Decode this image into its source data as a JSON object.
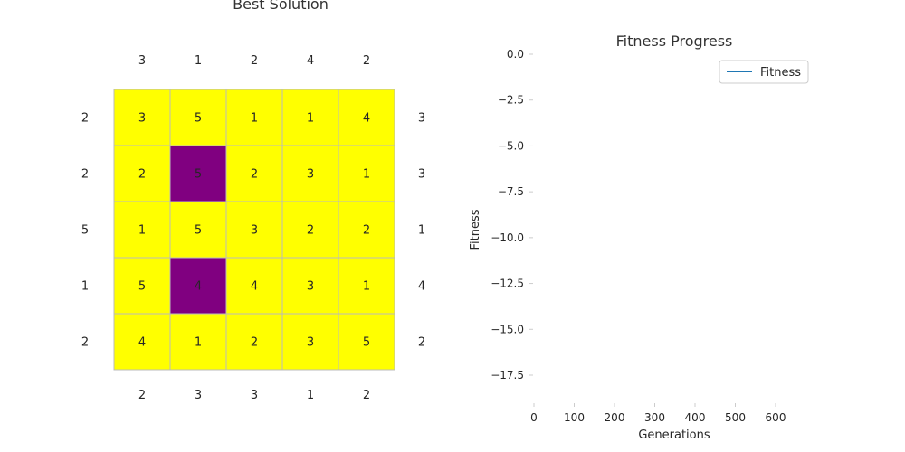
{
  "chart_data": [
    {
      "type": "heatmap",
      "title": "Best Solution",
      "colors": {
        "unshaded": "#ffff00",
        "shaded": "#800080",
        "gridline": "#bbbbbb"
      },
      "grid": [
        [
          3,
          5,
          1,
          1,
          4
        ],
        [
          2,
          5,
          2,
          3,
          1
        ],
        [
          1,
          5,
          3,
          2,
          2
        ],
        [
          5,
          4,
          4,
          3,
          1
        ],
        [
          4,
          1,
          2,
          3,
          5
        ]
      ],
      "shaded": [
        [
          false,
          false,
          false,
          false,
          false
        ],
        [
          false,
          true,
          false,
          false,
          false
        ],
        [
          false,
          false,
          false,
          false,
          false
        ],
        [
          false,
          true,
          false,
          false,
          false
        ],
        [
          false,
          false,
          false,
          false,
          false
        ]
      ],
      "top_clues": [
        3,
        1,
        2,
        4,
        2
      ],
      "bottom_clues": [
        2,
        3,
        3,
        1,
        2
      ],
      "left_clues": [
        2,
        2,
        5,
        1,
        2
      ],
      "right_clues": [
        3,
        3,
        1,
        4,
        2
      ]
    },
    {
      "type": "line",
      "title": "Fitness Progress",
      "xlabel": "Generations",
      "ylabel": "Fitness",
      "xlim": [
        0,
        700
      ],
      "ylim": [
        -18.5,
        0.5
      ],
      "xticks": [
        0,
        100,
        200,
        300,
        400,
        500,
        600
      ],
      "xtick_labels": [
        "0",
        "100",
        "200",
        "300",
        "400",
        "500",
        "600"
      ],
      "yticks": [
        0.0,
        -2.5,
        -5.0,
        -7.5,
        -10.0,
        -12.5,
        -15.0,
        -17.5
      ],
      "ytick_labels": [
        "0.0",
        "−2.5",
        "−5.0",
        "−7.5",
        "−10.0",
        "−12.5",
        "−15.0",
        "−17.5"
      ],
      "grid": false,
      "legend_position": "top-right",
      "series": [
        {
          "name": "Fitness",
          "color": "#1f77b4",
          "x": [],
          "y": []
        }
      ]
    }
  ]
}
